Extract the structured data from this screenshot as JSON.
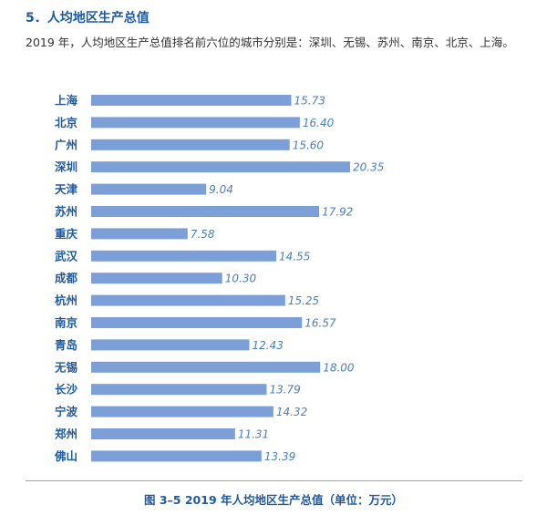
{
  "section": {
    "title": "5．人均地区生产总值",
    "intro": "2019 年，人均地区生产总值排名前六位的城市分别是：深圳、无锡、苏州、南京、北京、上海。"
  },
  "caption": "图 3–5   2019 年人均地区生产总值（单位：万元）",
  "colors": {
    "bar": "#7b9fd6",
    "city_label": "#1f5aa0",
    "value_label": "#4a7fc0",
    "divider": "#7fb0d8"
  },
  "chart_data": {
    "type": "bar",
    "orientation": "horizontal",
    "title": "",
    "xlabel": "",
    "ylabel": "",
    "categories": [
      "上海",
      "北京",
      "广州",
      "深圳",
      "天津",
      "苏州",
      "重庆",
      "武汉",
      "成都",
      "杭州",
      "南京",
      "青岛",
      "无锡",
      "长沙",
      "宁波",
      "郑州",
      "佛山"
    ],
    "values": [
      15.73,
      16.4,
      15.6,
      20.35,
      9.04,
      17.92,
      7.58,
      14.55,
      10.3,
      15.25,
      16.57,
      12.43,
      18.0,
      13.79,
      14.32,
      11.31,
      13.39
    ],
    "value_labels": [
      "15.73",
      "16.40",
      "15.60",
      "20.35",
      "9.04",
      "17.92",
      "7.58",
      "14.55",
      "10.30",
      "15.25",
      "16.57",
      "12.43",
      "18.00",
      "13.79",
      "14.32",
      "11.31",
      "13.39"
    ],
    "xlim": [
      0,
      20.35
    ],
    "grid": false,
    "legend": "none"
  }
}
